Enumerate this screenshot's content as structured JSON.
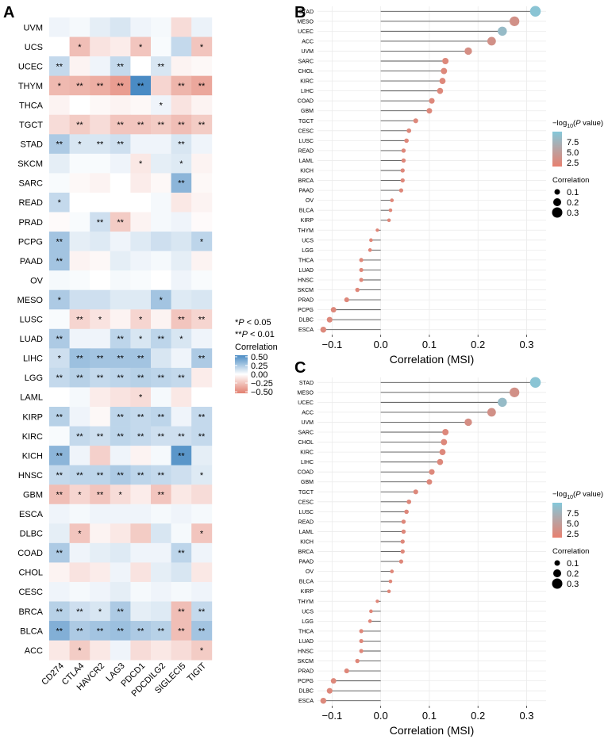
{
  "chart_data": [
    {
      "type": "heatmap",
      "panel_label": "A",
      "rows": [
        "UVM",
        "UCS",
        "UCEC",
        "THYM",
        "THCA",
        "TGCT",
        "STAD",
        "SKCM",
        "SARC",
        "READ",
        "PRAD",
        "PCPG",
        "PAAD",
        "OV",
        "MESO",
        "LUSC",
        "LUAD",
        "LIHC",
        "LGG",
        "LAML",
        "KIRP",
        "KIRC",
        "KICH",
        "HNSC",
        "GBM",
        "ESCA",
        "DLBC",
        "COAD",
        "CHOL",
        "CESC",
        "BRCA",
        "BLCA",
        "ACC"
      ],
      "columns": [
        "CD274",
        "CTLA4",
        "HAVCR2",
        "LAG3",
        "PDCD1",
        "PDCDILG2",
        "SIGLECI5",
        "TIGIT"
      ],
      "values": [
        [
          0.05,
          0.03,
          0.08,
          0.12,
          0.05,
          0.03,
          -0.15,
          0.06
        ],
        [
          0.0,
          -0.28,
          -0.12,
          -0.08,
          -0.25,
          0.02,
          0.18,
          -0.25
        ],
        [
          0.18,
          -0.05,
          0.05,
          0.18,
          0.0,
          0.12,
          -0.05,
          -0.03
        ],
        [
          -0.3,
          -0.32,
          -0.35,
          -0.42,
          0.55,
          -0.18,
          -0.32,
          -0.38
        ],
        [
          -0.05,
          0.0,
          -0.03,
          -0.05,
          -0.03,
          0.05,
          -0.12,
          -0.05
        ],
        [
          -0.15,
          -0.22,
          -0.15,
          -0.25,
          -0.25,
          -0.22,
          -0.28,
          -0.22
        ],
        [
          0.25,
          0.12,
          0.12,
          0.15,
          0.05,
          0.05,
          0.12,
          0.05
        ],
        [
          0.08,
          0.02,
          0.02,
          0.05,
          -0.1,
          0.08,
          0.1,
          -0.05
        ],
        [
          0.02,
          -0.03,
          -0.05,
          0.0,
          -0.08,
          -0.03,
          0.35,
          -0.03
        ],
        [
          0.18,
          0.0,
          0.0,
          0.0,
          0.0,
          0.03,
          -0.1,
          -0.05
        ],
        [
          -0.02,
          0.02,
          0.15,
          -0.22,
          -0.05,
          0.03,
          0.05,
          -0.02
        ],
        [
          0.28,
          0.08,
          0.1,
          0.05,
          0.1,
          0.15,
          0.12,
          0.2
        ],
        [
          0.28,
          -0.05,
          -0.03,
          0.08,
          0.05,
          0.03,
          0.08,
          -0.05
        ],
        [
          0.03,
          0.02,
          0.0,
          0.03,
          0.02,
          0.0,
          0.05,
          0.02
        ],
        [
          0.25,
          0.15,
          0.15,
          0.1,
          0.1,
          0.28,
          0.1,
          0.12
        ],
        [
          0.02,
          -0.18,
          -0.12,
          -0.05,
          -0.18,
          -0.05,
          -0.25,
          -0.18
        ],
        [
          0.25,
          0.05,
          0.05,
          0.2,
          0.12,
          0.2,
          0.12,
          0.05
        ],
        [
          0.15,
          0.3,
          0.28,
          0.28,
          0.28,
          0.12,
          0.05,
          0.25
        ],
        [
          0.18,
          0.22,
          0.18,
          0.2,
          0.22,
          0.2,
          0.18,
          -0.08
        ],
        [
          0.0,
          0.03,
          -0.08,
          -0.12,
          -0.15,
          0.03,
          -0.1,
          0.0
        ],
        [
          0.22,
          0.05,
          -0.03,
          0.2,
          0.18,
          0.2,
          0.05,
          0.18
        ],
        [
          0.02,
          0.18,
          0.15,
          0.2,
          0.18,
          0.15,
          0.15,
          0.18
        ],
        [
          0.35,
          0.05,
          -0.2,
          0.05,
          -0.05,
          0.03,
          0.5,
          0.08
        ],
        [
          0.18,
          0.2,
          0.2,
          0.25,
          0.2,
          0.18,
          0.15,
          0.1
        ],
        [
          -0.28,
          -0.18,
          -0.25,
          -0.15,
          -0.08,
          -0.25,
          -0.1,
          -0.15
        ],
        [
          0.05,
          0.03,
          0.05,
          0.05,
          0.05,
          0.03,
          0.05,
          0.03
        ],
        [
          0.08,
          -0.25,
          -0.05,
          -0.1,
          -0.22,
          0.12,
          0.03,
          -0.25
        ],
        [
          0.25,
          0.05,
          0.08,
          0.1,
          0.05,
          0.05,
          0.2,
          0.05
        ],
        [
          -0.05,
          -0.12,
          -0.08,
          0.05,
          -0.12,
          0.08,
          0.12,
          -0.1
        ],
        [
          0.05,
          0.03,
          0.05,
          0.08,
          0.03,
          0.05,
          0.03,
          0.05
        ],
        [
          0.22,
          0.15,
          0.12,
          0.25,
          0.08,
          0.1,
          -0.28,
          0.18
        ],
        [
          0.38,
          0.25,
          0.28,
          0.3,
          0.25,
          0.22,
          -0.28,
          0.28
        ],
        [
          -0.1,
          -0.22,
          -0.1,
          0.05,
          -0.15,
          -0.1,
          -0.15,
          -0.22
        ]
      ],
      "stars": [
        [
          "",
          "",
          "",
          "",
          "",
          "",
          "",
          ""
        ],
        [
          "",
          "*",
          "",
          "",
          "*",
          "",
          "",
          "*"
        ],
        [
          "**",
          "",
          "",
          "**",
          "",
          "**",
          "",
          ""
        ],
        [
          "*",
          "**",
          "**",
          "**",
          "**",
          "",
          "**",
          "**"
        ],
        [
          "",
          "",
          "",
          "",
          "",
          "*",
          "",
          ""
        ],
        [
          "",
          "**",
          "",
          "**",
          "**",
          "**",
          "**",
          "**"
        ],
        [
          "**",
          "*",
          "**",
          "**",
          "",
          "",
          "**",
          ""
        ],
        [
          "",
          "",
          "",
          "",
          "*",
          "",
          "*",
          ""
        ],
        [
          "",
          "",
          "",
          "",
          "",
          "",
          "**",
          ""
        ],
        [
          "*",
          "",
          "",
          "",
          "",
          "",
          "",
          ""
        ],
        [
          "",
          "",
          "**",
          "**",
          "",
          "",
          "",
          ""
        ],
        [
          "**",
          "",
          "",
          "",
          "",
          "",
          "",
          "*"
        ],
        [
          "**",
          "",
          "",
          "",
          "",
          "",
          "",
          ""
        ],
        [
          "",
          "",
          "",
          "",
          "",
          "",
          "",
          ""
        ],
        [
          "*",
          "",
          "",
          "",
          "",
          "*",
          "",
          ""
        ],
        [
          "",
          "**",
          "*",
          "",
          "*",
          "",
          "**",
          "**"
        ],
        [
          "**",
          "",
          "",
          "**",
          "*",
          "**",
          "*",
          ""
        ],
        [
          "*",
          "**",
          "**",
          "**",
          "**",
          "",
          "",
          "**"
        ],
        [
          "**",
          "**",
          "**",
          "**",
          "**",
          "**",
          "**",
          ""
        ],
        [
          "",
          "",
          "",
          "",
          "*",
          "",
          "",
          ""
        ],
        [
          "**",
          "",
          "",
          "**",
          "**",
          "**",
          "",
          "**"
        ],
        [
          "",
          "**",
          "**",
          "**",
          "**",
          "**",
          "**",
          "**"
        ],
        [
          "**",
          "",
          "",
          "",
          "",
          "",
          "**",
          ""
        ],
        [
          "**",
          "**",
          "**",
          "**",
          "**",
          "**",
          "",
          "*"
        ],
        [
          "**",
          "*",
          "**",
          "*",
          "",
          "**",
          "",
          ""
        ],
        [
          "",
          "",
          "",
          "",
          "",
          "",
          "",
          ""
        ],
        [
          "",
          "*",
          "",
          "",
          "",
          "",
          "",
          "*"
        ],
        [
          "**",
          "",
          "",
          "",
          "",
          "",
          "**",
          ""
        ],
        [
          "",
          "",
          "",
          "",
          "",
          "",
          "",
          ""
        ],
        [
          "",
          "",
          "",
          "",
          "",
          "",
          "",
          ""
        ],
        [
          "**",
          "**",
          "*",
          "**",
          "",
          "",
          "**",
          "**"
        ],
        [
          "**",
          "**",
          "**",
          "**",
          "**",
          "**",
          "**",
          "**"
        ],
        [
          "",
          "*",
          "",
          "",
          "",
          "",
          "",
          "*"
        ]
      ],
      "legend": {
        "sig_lines": [
          {
            "prefix": "*",
            "italic": "P",
            "suffix": " < 0.05"
          },
          {
            "prefix": "**",
            "italic": "P",
            "suffix": " < 0.01"
          }
        ],
        "title": "Correlation",
        "ticks": [
          "0.50",
          "0.25",
          "0.00",
          "−0.25",
          "−0.50"
        ],
        "tick_values": [
          0.5,
          0.25,
          0,
          -0.25,
          -0.5
        ]
      },
      "colors": {
        "high": "#4a8bc4",
        "mid": "#ffffff",
        "low": "#e27f6f",
        "star": "#000000"
      }
    },
    {
      "type": "lollipop",
      "panel_label": "B",
      "categories": [
        "STAD",
        "MESO",
        "UCEC",
        "ACC",
        "UVM",
        "SARC",
        "CHOL",
        "KIRC",
        "LIHC",
        "COAD",
        "GBM",
        "TGCT",
        "CESC",
        "LUSC",
        "READ",
        "LAML",
        "KICH",
        "BRCA",
        "PAAD",
        "OV",
        "BLCA",
        "KIRP",
        "THYM",
        "UCS",
        "LGG",
        "THCA",
        "LUAD",
        "HNSC",
        "SKCM",
        "PRAD",
        "PCPG",
        "DLBC",
        "ESCA"
      ],
      "values": [
        0.318,
        0.275,
        0.25,
        0.228,
        0.18,
        0.133,
        0.13,
        0.127,
        0.122,
        0.105,
        0.1,
        0.072,
        0.058,
        0.053,
        0.047,
        0.047,
        0.045,
        0.045,
        0.042,
        0.023,
        0.02,
        0.017,
        -0.007,
        -0.02,
        -0.022,
        -0.04,
        -0.04,
        -0.04,
        -0.048,
        -0.07,
        -0.097,
        -0.105,
        -0.118
      ],
      "neglog10p": [
        9.5,
        3.5,
        8.5,
        3.5,
        3.2,
        2.5,
        2.5,
        2.5,
        2.5,
        2.5,
        2.5,
        2.5,
        2.4,
        2.4,
        2.4,
        2.4,
        2.4,
        2.4,
        2.4,
        2.3,
        2.3,
        2.3,
        2.2,
        2.2,
        2.2,
        2.3,
        2.3,
        2.3,
        2.3,
        2.4,
        2.5,
        2.5,
        2.6
      ],
      "xlabel": "Correlation (MSI)",
      "ylabel": "",
      "xlim": [
        -0.13,
        0.34
      ],
      "xticks": [
        -0.1,
        0.0,
        0.1,
        0.2,
        0.3
      ],
      "xtick_labels": [
        "−0.1",
        "0.0",
        "0.1",
        "0.2",
        "0.3"
      ],
      "color_legend": {
        "title_prefix": "−log",
        "title_sub": "10",
        "title_open": "(",
        "title_italic": "P",
        "title_suffix": " value)",
        "ticks": [
          "7.5",
          "5.0",
          "2.5"
        ],
        "tick_values": [
          7.5,
          5.0,
          2.5
        ],
        "range": [
          1.5,
          10
        ]
      },
      "size_legend": {
        "title": "Correlation",
        "labels": [
          "0.1",
          "0.2",
          "0.3"
        ],
        "values": [
          0.1,
          0.2,
          0.3
        ]
      },
      "colors": {
        "low": "#e8806f",
        "high": "#84c8da",
        "mid": "#b8a3a3",
        "stem": "#555555",
        "grid": "#ebebeb"
      }
    },
    {
      "type": "lollipop",
      "panel_label": "C",
      "categories": [
        "STAD",
        "MESO",
        "UCEC",
        "ACC",
        "UVM",
        "SARC",
        "CHOL",
        "KIRC",
        "LIHC",
        "COAD",
        "GBM",
        "TGCT",
        "CESC",
        "LUSC",
        "READ",
        "LAML",
        "KICH",
        "BRCA",
        "PAAD",
        "OV",
        "BLCA",
        "KIRP",
        "THYM",
        "UCS",
        "LGG",
        "THCA",
        "LUAD",
        "HNSC",
        "SKCM",
        "PRAD",
        "PCPG",
        "DLBC",
        "ESCA"
      ],
      "values": [
        0.318,
        0.275,
        0.25,
        0.228,
        0.18,
        0.133,
        0.13,
        0.127,
        0.122,
        0.105,
        0.1,
        0.072,
        0.058,
        0.053,
        0.047,
        0.047,
        0.045,
        0.045,
        0.042,
        0.023,
        0.02,
        0.017,
        -0.007,
        -0.02,
        -0.022,
        -0.04,
        -0.04,
        -0.04,
        -0.048,
        -0.07,
        -0.097,
        -0.105,
        -0.118
      ],
      "neglog10p": [
        9.5,
        3.5,
        8.5,
        3.5,
        3.2,
        2.5,
        2.5,
        2.5,
        2.5,
        2.5,
        2.5,
        2.5,
        2.4,
        2.4,
        2.4,
        2.4,
        2.4,
        2.4,
        2.4,
        2.3,
        2.3,
        2.3,
        2.2,
        2.2,
        2.2,
        2.3,
        2.3,
        2.3,
        2.3,
        2.4,
        2.5,
        2.5,
        2.6
      ],
      "xlabel": "Correlation (MSI)",
      "ylabel": "",
      "xlim": [
        -0.13,
        0.34
      ],
      "xticks": [
        -0.1,
        0.0,
        0.1,
        0.2,
        0.3
      ],
      "xtick_labels": [
        "−0.1",
        "0.0",
        "0.1",
        "0.2",
        "0.3"
      ],
      "color_legend": {
        "title_prefix": "−log",
        "title_sub": "10",
        "title_open": "(",
        "title_italic": "P",
        "title_suffix": " value)",
        "ticks": [
          "7.5",
          "5.0",
          "2.5"
        ],
        "tick_values": [
          7.5,
          5.0,
          2.5
        ],
        "range": [
          1.5,
          10
        ]
      },
      "size_legend": {
        "title": "Correlation",
        "labels": [
          "0.1",
          "0.2",
          "0.3"
        ],
        "values": [
          0.1,
          0.2,
          0.3
        ]
      },
      "colors": {
        "low": "#e8806f",
        "high": "#84c8da",
        "mid": "#b8a3a3",
        "stem": "#555555",
        "grid": "#ebebeb"
      }
    }
  ]
}
